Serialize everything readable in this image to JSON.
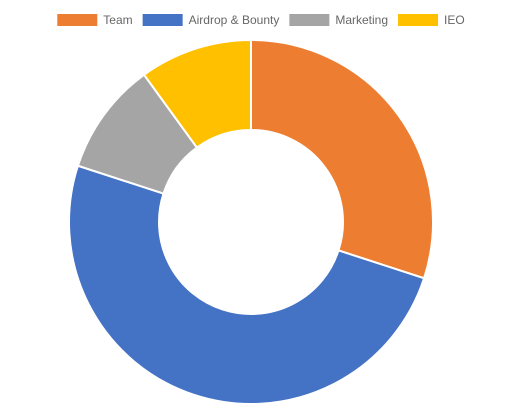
{
  "chart_data": {
    "type": "donut",
    "categories": [
      "Team",
      "Airdrop & Bounty",
      "Marketing",
      "IEO"
    ],
    "values": [
      30,
      50,
      10,
      10
    ],
    "colors": [
      "#ed7d31",
      "#4472c4",
      "#a5a5a5",
      "#ffc000"
    ],
    "legend": "top"
  }
}
